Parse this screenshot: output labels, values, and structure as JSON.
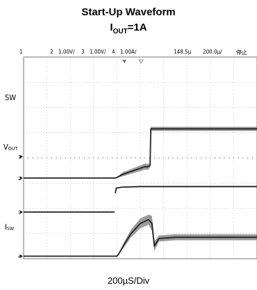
{
  "chart_data": {
    "type": "line",
    "title": "Start-Up Waveform",
    "subtitle_main": "I",
    "subtitle_sub": "OUT",
    "subtitle_rest": "=1A",
    "xlabel": "200µS/Div",
    "status_bar": {
      "ch1": "1",
      "ch2": "2",
      "ch2_scale": "1.00V/",
      "ch3": "3",
      "ch3_scale": "1.00V/",
      "ch4": "4",
      "ch4_scale": "1.00A/",
      "delay": "148.5µ",
      "timebase": "200.0µ/",
      "run_state": "停止"
    },
    "channels": [
      {
        "name_main": "SW",
        "name_sub": "",
        "marker": "2"
      },
      {
        "name_main": "V",
        "name_sub": "OUT",
        "marker": "1"
      },
      {
        "name_main": "",
        "name_sub": "",
        "marker": "3"
      },
      {
        "name_main": "I",
        "name_sub": "SW",
        "marker": "4"
      }
    ],
    "grid": true,
    "divisions": {
      "x": 10,
      "y": 8
    },
    "x_unit": "div (200µS/Div)",
    "series": [
      {
        "x": [
          0,
          3.95,
          4.25,
          5.2,
          5.35,
          5.42,
          5.45,
          10
        ],
        "y": [
          3.2,
          3.2,
          3.35,
          3.65,
          3.65,
          3.7,
          5.15,
          5.15
        ],
        "noise": [
          0,
          0,
          0.08,
          0.12,
          0.12,
          0.05,
          0.08,
          0.08
        ]
      },
      {
        "x": [
          0,
          3.92,
          3.93,
          3.97,
          4.2,
          5.0,
          10
        ],
        "y": [
          null,
          null,
          2.6,
          2.8,
          2.84,
          2.86,
          2.86
        ],
        "noise": [
          0,
          0,
          0,
          0,
          0,
          0,
          0
        ]
      },
      {
        "x": [
          0,
          3.9,
          3.9
        ],
        "y": [
          1.85,
          1.85,
          null
        ],
        "noise": [
          0,
          0,
          0
        ]
      },
      {
        "x": [
          0,
          4.0,
          4.08,
          4.3,
          4.6,
          5.0,
          5.35,
          5.5,
          5.6,
          5.8,
          6.5,
          10
        ],
        "y": [
          0.1,
          0.1,
          0.2,
          0.55,
          1.0,
          1.4,
          1.55,
          1.4,
          0.5,
          0.8,
          0.85,
          0.85
        ],
        "noise": [
          0,
          0,
          0.03,
          0.1,
          0.15,
          0.2,
          0.2,
          0.3,
          0.2,
          0.12,
          0.12,
          0.12
        ]
      }
    ]
  }
}
